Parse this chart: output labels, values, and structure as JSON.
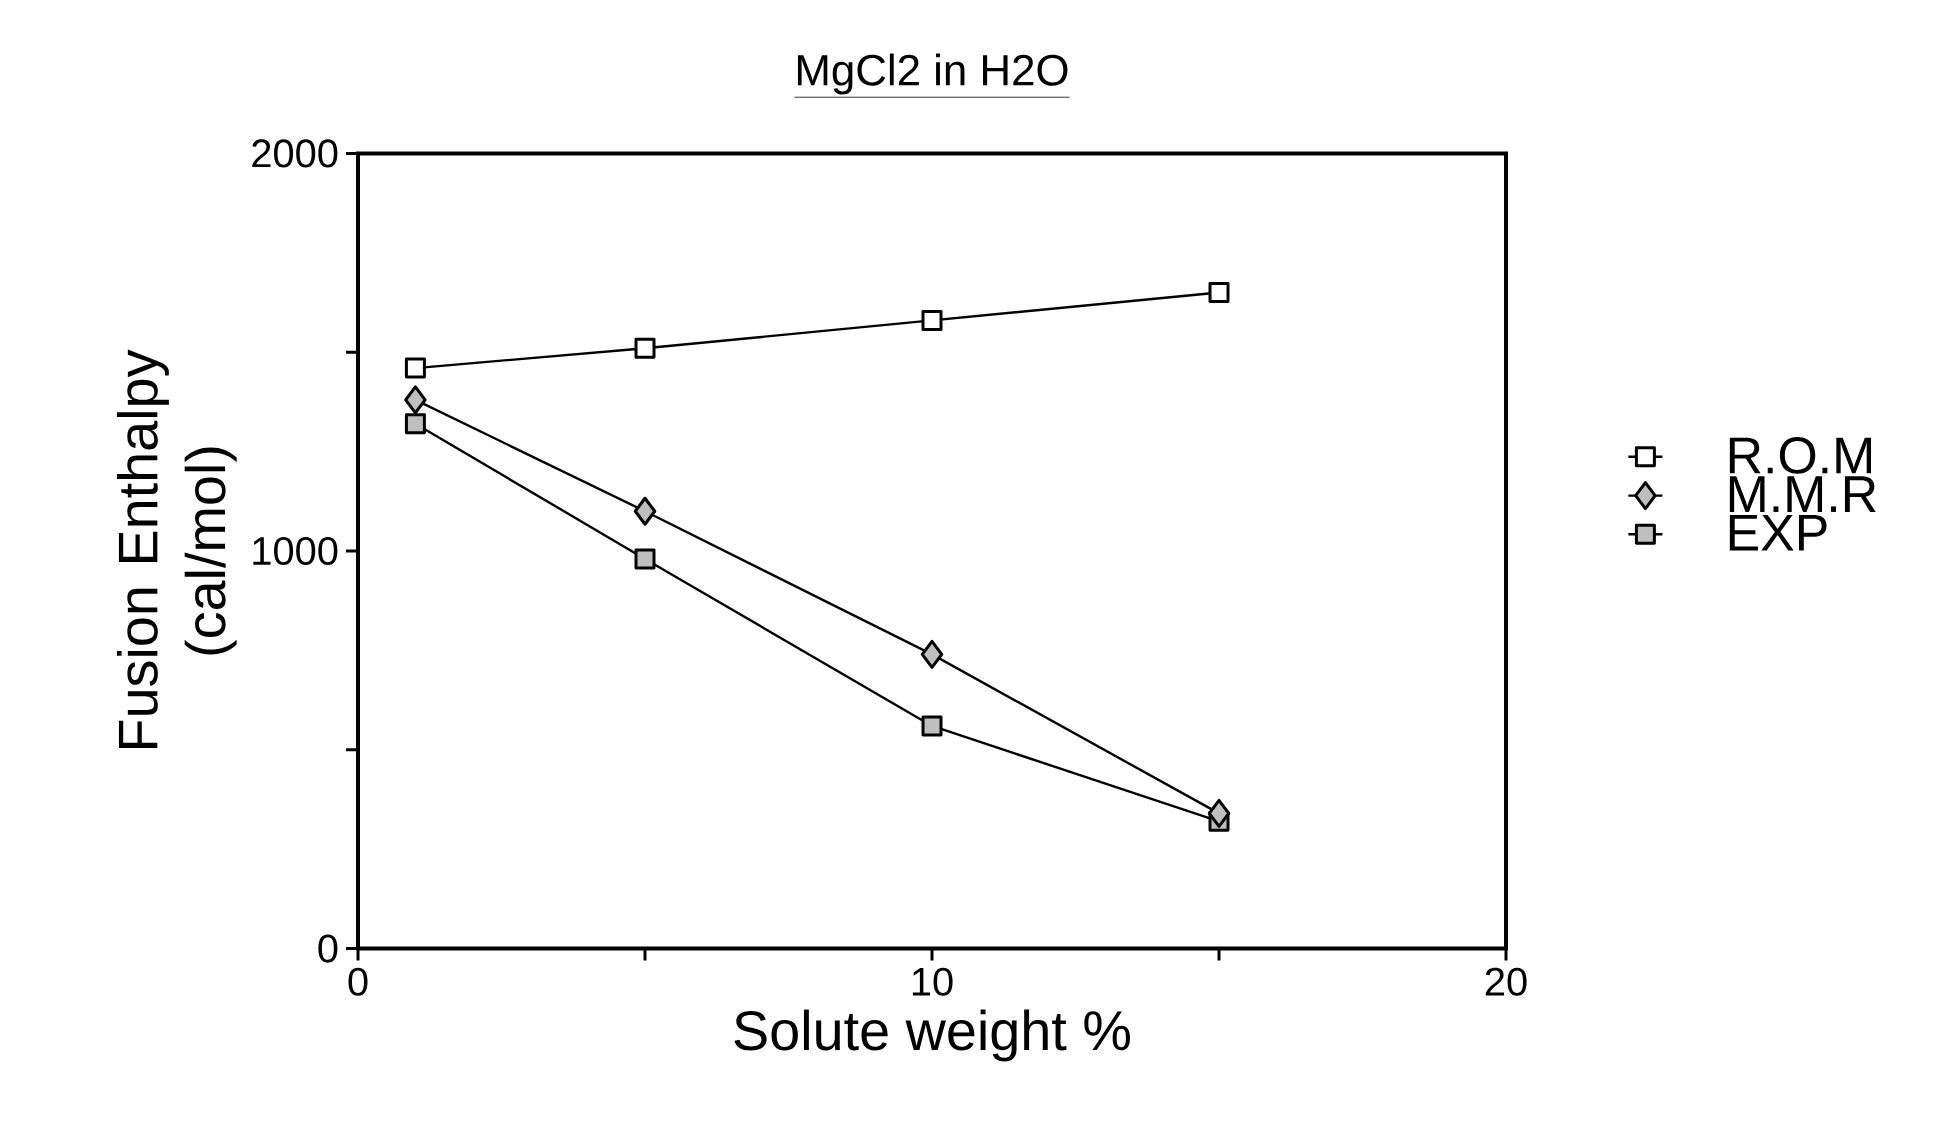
{
  "chart_data": {
    "type": "line",
    "title": "MgCl2 in H2O",
    "xlabel": "Solute weight %",
    "ylabel": "Fusion Enthalpy (cal/mol)",
    "x": [
      1,
      5,
      10,
      15
    ],
    "series": [
      {
        "name": "R.O.M",
        "color": "#000000",
        "marker": "square",
        "values": [
          1460,
          1510,
          1580,
          1650
        ]
      },
      {
        "name": "M.M.R",
        "color": "#000000",
        "marker": "diamond",
        "values": [
          1380,
          1100,
          740,
          340
        ]
      },
      {
        "name": "EXP",
        "color": "#000000",
        "marker": "square",
        "values": [
          1320,
          980,
          560,
          320
        ]
      }
    ],
    "xlim": [
      0,
      20
    ],
    "ylim": [
      0,
      2000
    ],
    "xticks": [
      0,
      {
        "value": 5,
        "label": null
      },
      10,
      {
        "value": 15,
        "label": null
      },
      20
    ],
    "yticks": [
      0,
      {
        "value": 500,
        "label": null
      },
      1000,
      {
        "value": 1500,
        "label": null
      },
      2000
    ],
    "grid": false,
    "legend": "right",
    "line_style": "solid"
  }
}
